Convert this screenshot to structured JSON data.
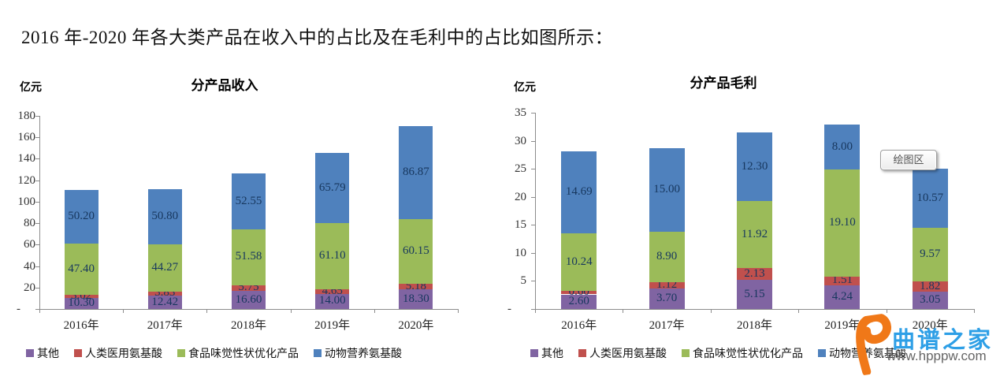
{
  "heading": "2016 年-2020 年各大类产品在收入中的占比及在毛利中的占比如图所示：",
  "tooltip_label": "绘图区",
  "watermark": {
    "brand": "曲谱之家",
    "url": "www.hpppw.com",
    "logo_color": "#F07818",
    "brand_color": "#2E9FE6"
  },
  "colors": {
    "other": "#8064A2",
    "human_medical": "#C0504D",
    "food_taste": "#9BBB59",
    "animal_nutrition": "#4F81BD"
  },
  "chart_data": [
    {
      "type": "bar",
      "stacked": true,
      "title": "分产品收入",
      "unit_label": "亿元",
      "categories": [
        "2016年",
        "2017年",
        "2018年",
        "2019年",
        "2020年"
      ],
      "series": [
        {
          "name": "其他",
          "color": "#8064A2",
          "values": [
            10.3,
            12.42,
            16.6,
            14.0,
            18.3
          ]
        },
        {
          "name": "人类医用氨基酸",
          "color": "#C0504D",
          "values": [
            3.02,
            3.83,
            5.75,
            4.65,
            5.18
          ]
        },
        {
          "name": "食品味觉性状优化产品",
          "color": "#9BBB59",
          "values": [
            47.4,
            44.27,
            51.58,
            61.1,
            60.15
          ]
        },
        {
          "name": "动物营养氨基酸",
          "color": "#4F81BD",
          "values": [
            50.2,
            50.8,
            52.55,
            65.79,
            86.87
          ]
        }
      ],
      "ylim": [
        0,
        180
      ],
      "ytick_step": 20,
      "zero_tick_label": "-",
      "grid": false,
      "legend_position": "bottom",
      "data_labels": true
    },
    {
      "type": "bar",
      "stacked": true,
      "title": "分产品毛利",
      "unit_label": "亿元",
      "categories": [
        "2016年",
        "2017年",
        "2018年",
        "2019年",
        "2020年"
      ],
      "series": [
        {
          "name": "其他",
          "color": "#8064A2",
          "values": [
            2.6,
            3.7,
            5.15,
            4.24,
            3.05
          ]
        },
        {
          "name": "人类医用氨基酸",
          "color": "#C0504D",
          "values": [
            0.6,
            1.12,
            2.13,
            1.51,
            1.82
          ]
        },
        {
          "name": "食品味觉性状优化产品",
          "color": "#9BBB59",
          "values": [
            10.24,
            8.9,
            11.92,
            19.1,
            9.57
          ]
        },
        {
          "name": "动物营养氨基酸",
          "color": "#4F81BD",
          "values": [
            14.69,
            15.0,
            12.3,
            8.0,
            10.57
          ]
        }
      ],
      "ylim": [
        0,
        35
      ],
      "ytick_step": 5,
      "zero_tick_label": "-",
      "grid": false,
      "legend_position": "bottom",
      "data_labels": true
    }
  ]
}
